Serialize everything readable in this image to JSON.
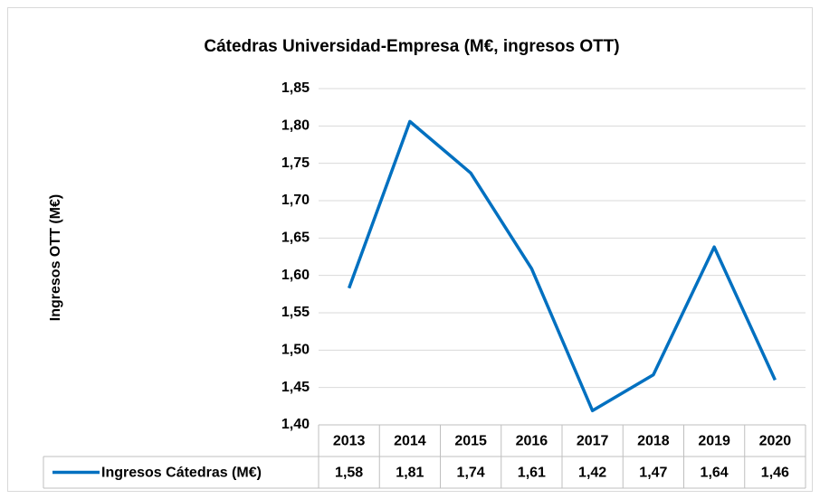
{
  "chart_data": {
    "type": "line",
    "title": "Cátedras Universidad-Empresa (M€, ingresos OTT)",
    "y_label": "Ingresos OTT (M€)",
    "categories": [
      "2013",
      "2014",
      "2015",
      "2016",
      "2017",
      "2018",
      "2019",
      "2020"
    ],
    "series": [
      {
        "name": "Ingresos Cátedras (M€)",
        "color": "#0070c0",
        "values": [
          1.583,
          1.806,
          1.737,
          1.609,
          1.419,
          1.467,
          1.638,
          1.46
        ],
        "value_labels": [
          "1,58",
          "1,81",
          "1,74",
          "1,61",
          "1,42",
          "1,47",
          "1,64",
          "1,46"
        ]
      }
    ],
    "ylim": [
      1.4,
      1.85
    ],
    "yticks": [
      {
        "value": 1.4,
        "label": "1,40"
      },
      {
        "value": 1.45,
        "label": "1,45"
      },
      {
        "value": 1.5,
        "label": "1,50"
      },
      {
        "value": 1.55,
        "label": "1,55"
      },
      {
        "value": 1.6,
        "label": "1,60"
      },
      {
        "value": 1.65,
        "label": "1,65"
      },
      {
        "value": 1.7,
        "label": "1,70"
      },
      {
        "value": 1.75,
        "label": "1,75"
      },
      {
        "value": 1.8,
        "label": "1,80"
      },
      {
        "value": 1.85,
        "label": "1,85"
      }
    ],
    "grid": true
  }
}
